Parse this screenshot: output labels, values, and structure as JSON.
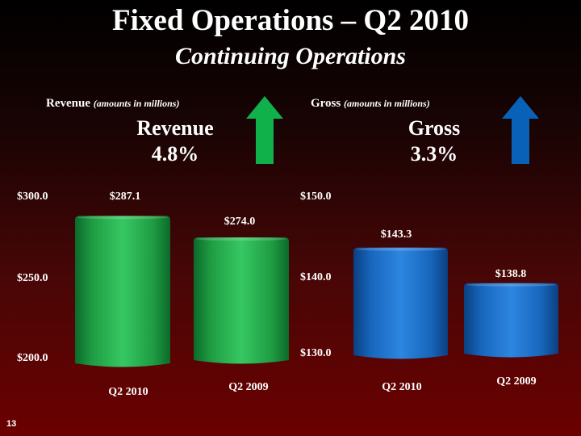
{
  "slide": {
    "title": "Fixed Operations – Q2 2010",
    "subtitle": "Continuing Operations",
    "page_number": "13"
  },
  "colors": {
    "revenue": "#22b24c",
    "gross": "#1a74c9",
    "arrow_revenue": "#10b04a",
    "arrow_gross": "#0a62b8"
  },
  "icons": {
    "revenue_arrow": "up-arrow-icon",
    "gross_arrow": "up-arrow-icon"
  },
  "revenue_panel": {
    "label": "Revenue",
    "note": "(amounts in millions)",
    "growth_label": "Revenue",
    "growth_value": "4.8%"
  },
  "gross_panel": {
    "label": "Gross",
    "note": "(amounts in millions)",
    "growth_label": "Gross",
    "growth_value": "3.3%"
  },
  "chart_data": [
    {
      "type": "bar",
      "categories": [
        "Q2 2010",
        "Q2 2009"
      ],
      "values": [
        287.1,
        274.0
      ],
      "data_labels": [
        "$287.1",
        "$274.0"
      ],
      "yticks": [
        "$200.0",
        "$250.0",
        "$300.0"
      ],
      "ylim": [
        200,
        300
      ],
      "grid": false
    },
    {
      "type": "bar",
      "categories": [
        "Q2 2010",
        "Q2 2009"
      ],
      "values": [
        143.3,
        138.8
      ],
      "data_labels": [
        "$143.3",
        "$138.8"
      ],
      "yticks": [
        "$130.0",
        "$140.0",
        "$150.0"
      ],
      "ylim": [
        130,
        150
      ],
      "grid": false
    }
  ]
}
